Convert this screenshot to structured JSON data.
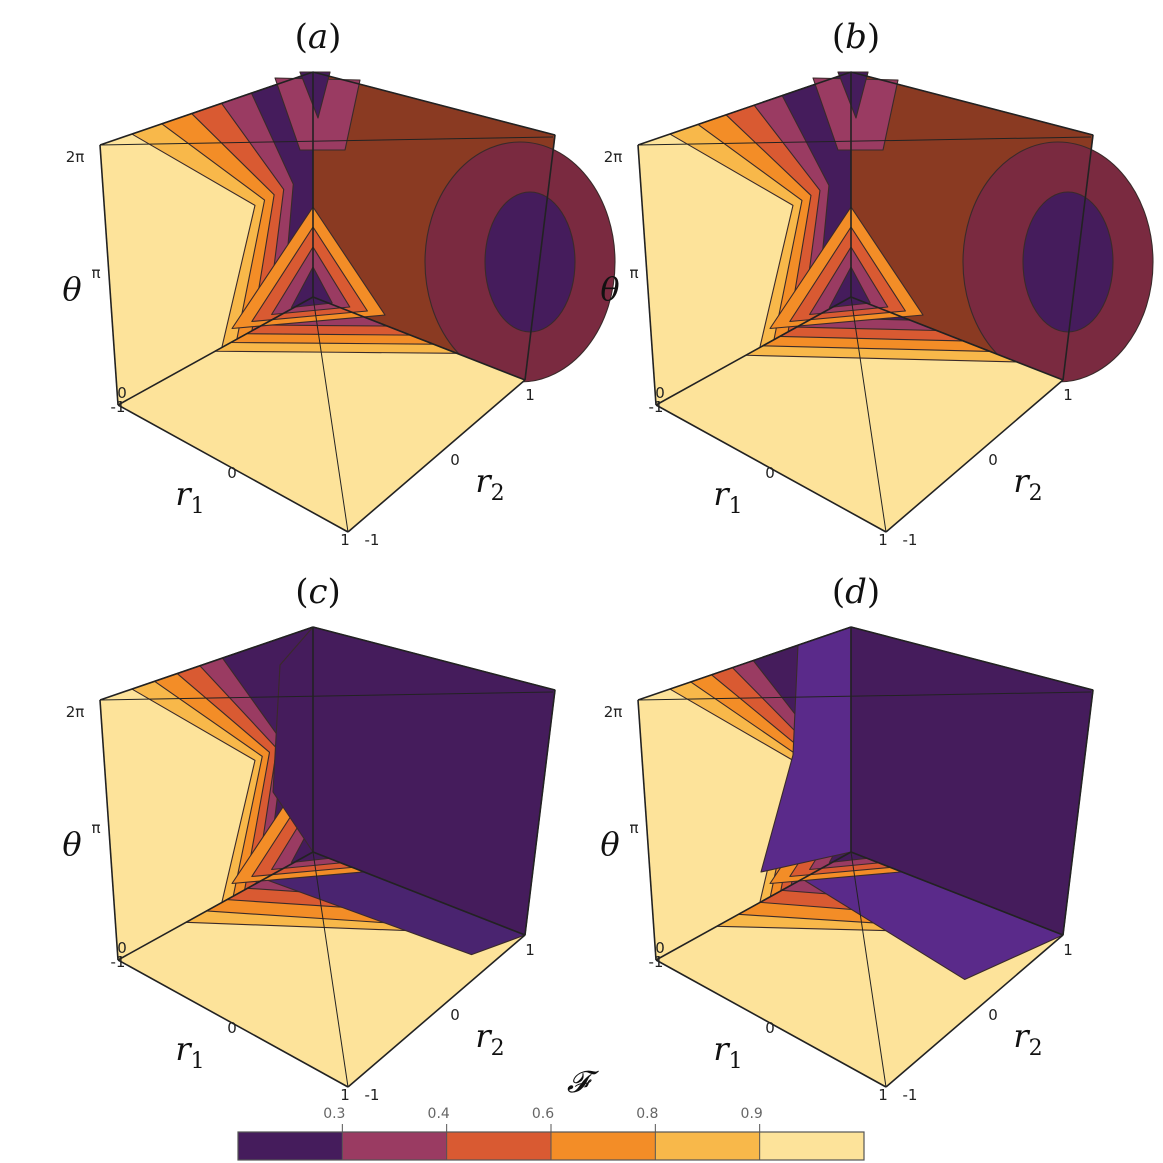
{
  "chart_data": [
    {
      "type": "contour3d",
      "panel": "(a)",
      "label_prefix": "(",
      "label_letter": "a",
      "label_suffix": ")",
      "x_axis": {
        "label": "r",
        "sub": "1",
        "range": [
          -1,
          1
        ],
        "ticks": [
          "-1",
          "0",
          "1"
        ]
      },
      "y_axis": {
        "label": "r",
        "sub": "2",
        "range": [
          -1,
          1
        ],
        "ticks": [
          "-1",
          "0",
          "1"
        ]
      },
      "z_axis": {
        "label": "θ",
        "range": [
          0,
          "2π"
        ],
        "ticks": [
          "0",
          "π",
          "2π"
        ]
      },
      "dark_fraction": 0.35
    },
    {
      "type": "contour3d",
      "panel": "(b)",
      "label_prefix": "(",
      "label_letter": "b",
      "label_suffix": ")",
      "x_axis": {
        "label": "r",
        "sub": "1",
        "range": [
          -1,
          1
        ],
        "ticks": [
          "-1",
          "0",
          "1"
        ]
      },
      "y_axis": {
        "label": "r",
        "sub": "2",
        "range": [
          -1,
          1
        ],
        "ticks": [
          "-1",
          "0",
          "1"
        ]
      },
      "z_axis": {
        "label": "θ",
        "range": [
          0,
          "2π"
        ],
        "ticks": [
          "0",
          "π",
          "2π"
        ]
      },
      "dark_fraction": 0.45
    },
    {
      "type": "contour3d",
      "panel": "(c)",
      "label_prefix": "(",
      "label_letter": "c",
      "label_suffix": ")",
      "x_axis": {
        "label": "r",
        "sub": "1",
        "range": [
          -1,
          1
        ],
        "ticks": [
          "-1",
          "0",
          "1"
        ]
      },
      "y_axis": {
        "label": "r",
        "sub": "2",
        "range": [
          -1,
          1
        ],
        "ticks": [
          "-1",
          "0",
          "1"
        ]
      },
      "z_axis": {
        "label": "θ",
        "range": [
          0,
          "2π"
        ],
        "ticks": [
          "0",
          "π",
          "2π"
        ]
      },
      "dark_fraction": 0.75
    },
    {
      "type": "contour3d",
      "panel": "(d)",
      "label_prefix": "(",
      "label_letter": "d",
      "label_suffix": ")",
      "x_axis": {
        "label": "r",
        "sub": "1",
        "range": [
          -1,
          1
        ],
        "ticks": [
          "-1",
          "0",
          "1"
        ]
      },
      "y_axis": {
        "label": "r",
        "sub": "2",
        "range": [
          -1,
          1
        ],
        "ticks": [
          "-1",
          "0",
          "1"
        ]
      },
      "z_axis": {
        "label": "θ",
        "range": [
          0,
          "2π"
        ],
        "ticks": [
          "0",
          "π",
          "2π"
        ]
      },
      "dark_fraction": 0.85
    }
  ],
  "colorbar": {
    "title": "𝓕",
    "ticks": [
      "0.3",
      "0.4",
      "0.6",
      "0.8",
      "0.9"
    ],
    "colors": [
      "#451c5c",
      "#9a3b62",
      "#d95a32",
      "#f38d27",
      "#f8b84a",
      "#fde39a"
    ]
  }
}
